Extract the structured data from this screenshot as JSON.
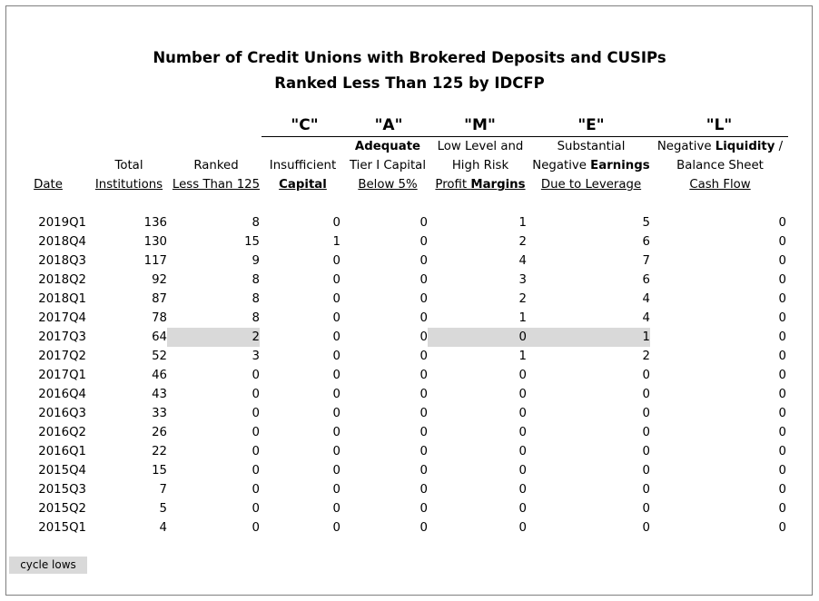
{
  "title": {
    "line1": "Number of Credit Unions with Brokered Deposits and CUSIPs",
    "line2": "Ranked Less Than 125 by IDCFP"
  },
  "letters": {
    "c": "\"C\"",
    "a": "\"A\"",
    "m": "\"M\"",
    "e": "\"E\"",
    "l": "\"L\""
  },
  "headers": {
    "date": "Date",
    "total": {
      "l1": "Total",
      "l2": "Institutions"
    },
    "ranked": {
      "l1": "Ranked",
      "l2": "Less Than 125"
    },
    "capital": {
      "l1": "Insufficient",
      "l2": "Capital"
    },
    "tier": {
      "l1": "Adequate",
      "l2": "Tier I Capital",
      "l3": "Below 5%"
    },
    "margins": {
      "l1": "Low Level and",
      "l2": "High Risk",
      "l3a": "Profit ",
      "l3b": "Margins"
    },
    "earnings": {
      "l1": "Substantial",
      "l2a": "Negative ",
      "l2b": "Earnings",
      "l3": "Due to Leverage"
    },
    "liquidity": {
      "l1a": "Negative ",
      "l1b": "Liquidity",
      "l1c": " /",
      "l2": "Balance Sheet",
      "l3": "Cash Flow"
    }
  },
  "rows": [
    {
      "date": "2019Q1",
      "total": "136",
      "ranked": "8",
      "capital": "0",
      "tier": "0",
      "margins": "1",
      "earnings": "5",
      "liquidity": "0"
    },
    {
      "date": "2018Q4",
      "total": "130",
      "ranked": "15",
      "capital": "1",
      "tier": "0",
      "margins": "2",
      "earnings": "6",
      "liquidity": "0"
    },
    {
      "date": "2018Q3",
      "total": "117",
      "ranked": "9",
      "capital": "0",
      "tier": "0",
      "margins": "4",
      "earnings": "7",
      "liquidity": "0"
    },
    {
      "date": "2018Q2",
      "total": "92",
      "ranked": "8",
      "capital": "0",
      "tier": "0",
      "margins": "3",
      "earnings": "6",
      "liquidity": "0"
    },
    {
      "date": "2018Q1",
      "total": "87",
      "ranked": "8",
      "capital": "0",
      "tier": "0",
      "margins": "2",
      "earnings": "4",
      "liquidity": "0"
    },
    {
      "date": "2017Q4",
      "total": "78",
      "ranked": "8",
      "capital": "0",
      "tier": "0",
      "margins": "1",
      "earnings": "4",
      "liquidity": "0"
    },
    {
      "date": "2017Q3",
      "total": "64",
      "ranked": "2",
      "capital": "0",
      "tier": "0",
      "margins": "0",
      "earnings": "1",
      "liquidity": "0"
    },
    {
      "date": "2017Q2",
      "total": "52",
      "ranked": "3",
      "capital": "0",
      "tier": "0",
      "margins": "1",
      "earnings": "2",
      "liquidity": "0"
    },
    {
      "date": "2017Q1",
      "total": "46",
      "ranked": "0",
      "capital": "0",
      "tier": "0",
      "margins": "0",
      "earnings": "0",
      "liquidity": "0"
    },
    {
      "date": "2016Q4",
      "total": "43",
      "ranked": "0",
      "capital": "0",
      "tier": "0",
      "margins": "0",
      "earnings": "0",
      "liquidity": "0"
    },
    {
      "date": "2016Q3",
      "total": "33",
      "ranked": "0",
      "capital": "0",
      "tier": "0",
      "margins": "0",
      "earnings": "0",
      "liquidity": "0"
    },
    {
      "date": "2016Q2",
      "total": "26",
      "ranked": "0",
      "capital": "0",
      "tier": "0",
      "margins": "0",
      "earnings": "0",
      "liquidity": "0"
    },
    {
      "date": "2016Q1",
      "total": "22",
      "ranked": "0",
      "capital": "0",
      "tier": "0",
      "margins": "0",
      "earnings": "0",
      "liquidity": "0"
    },
    {
      "date": "2015Q4",
      "total": "15",
      "ranked": "0",
      "capital": "0",
      "tier": "0",
      "margins": "0",
      "earnings": "0",
      "liquidity": "0"
    },
    {
      "date": "2015Q3",
      "total": "7",
      "ranked": "0",
      "capital": "0",
      "tier": "0",
      "margins": "0",
      "earnings": "0",
      "liquidity": "0"
    },
    {
      "date": "2015Q2",
      "total": "5",
      "ranked": "0",
      "capital": "0",
      "tier": "0",
      "margins": "0",
      "earnings": "0",
      "liquidity": "0"
    },
    {
      "date": "2015Q1",
      "total": "4",
      "ranked": "0",
      "capital": "0",
      "tier": "0",
      "margins": "0",
      "earnings": "0",
      "liquidity": "0"
    }
  ],
  "highlight": {
    "row": "2017Q3",
    "columns": [
      "ranked",
      "margins",
      "earnings"
    ],
    "color": "#d9d9d9"
  },
  "legend": {
    "label": "cycle lows",
    "color": "#d9d9d9"
  }
}
